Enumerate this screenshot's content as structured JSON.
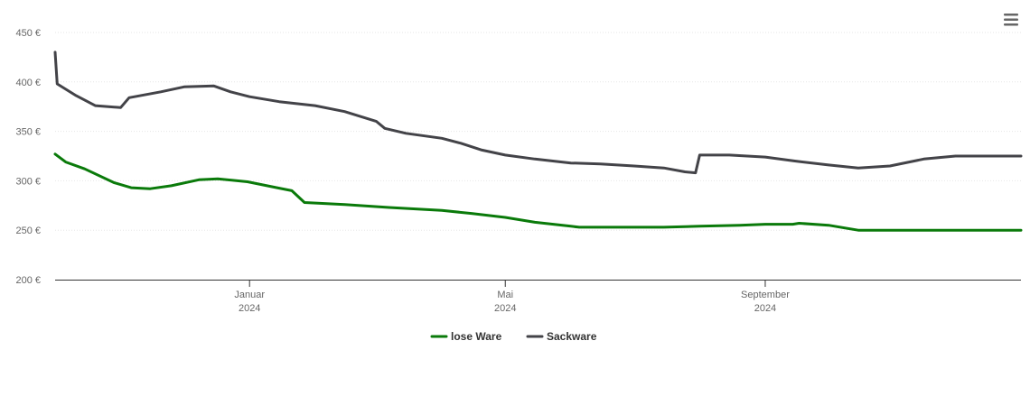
{
  "chart_data": {
    "type": "line",
    "y_unit": "€",
    "ylim": [
      200,
      450
    ],
    "y_ticks": [
      200,
      250,
      300,
      350,
      400,
      450
    ],
    "y_tick_labels": [
      "200 €",
      "250 €",
      "300 €",
      "350 €",
      "400 €",
      "450 €"
    ],
    "xlim": [
      "2023-10-01",
      "2024-12-31"
    ],
    "x_ticks": [
      {
        "date": "2024-01-01",
        "label": "Januar",
        "sublabel": "2024"
      },
      {
        "date": "2024-05-01",
        "label": "Mai",
        "sublabel": "2024"
      },
      {
        "date": "2024-09-01",
        "label": "September",
        "sublabel": "2024"
      }
    ],
    "grid": true,
    "legend_position": "bottom-center",
    "series": [
      {
        "name": "lose Ware",
        "color": "#0a7a0a",
        "points": [
          [
            "2023-10-01",
            327
          ],
          [
            "2023-10-06",
            319
          ],
          [
            "2023-10-15",
            312
          ],
          [
            "2023-10-29",
            298
          ],
          [
            "2023-11-06",
            293
          ],
          [
            "2023-11-15",
            292
          ],
          [
            "2023-11-25",
            295
          ],
          [
            "2023-12-08",
            301
          ],
          [
            "2023-12-17",
            302
          ],
          [
            "2023-12-31",
            299
          ],
          [
            "2024-01-14",
            293
          ],
          [
            "2024-01-21",
            290
          ],
          [
            "2024-01-27",
            278
          ],
          [
            "2024-02-15",
            276
          ],
          [
            "2024-03-07",
            273
          ],
          [
            "2024-04-01",
            270
          ],
          [
            "2024-04-15",
            267
          ],
          [
            "2024-05-01",
            263
          ],
          [
            "2024-05-15",
            258
          ],
          [
            "2024-06-01",
            254
          ],
          [
            "2024-06-05",
            253
          ],
          [
            "2024-06-20",
            253
          ],
          [
            "2024-07-15",
            253
          ],
          [
            "2024-08-01",
            254
          ],
          [
            "2024-08-20",
            255
          ],
          [
            "2024-09-01",
            256
          ],
          [
            "2024-09-14",
            256
          ],
          [
            "2024-09-17",
            257
          ],
          [
            "2024-10-01",
            255
          ],
          [
            "2024-10-15",
            250
          ],
          [
            "2024-10-30",
            250
          ],
          [
            "2024-11-15",
            250
          ],
          [
            "2024-12-01",
            250
          ],
          [
            "2024-12-14",
            250
          ],
          [
            "2024-12-31",
            250
          ]
        ]
      },
      {
        "name": "Sackware",
        "color": "#434348",
        "points": [
          [
            "2023-10-01",
            430
          ],
          [
            "2023-10-02",
            398
          ],
          [
            "2023-10-11",
            386
          ],
          [
            "2023-10-20",
            376
          ],
          [
            "2023-11-01",
            374
          ],
          [
            "2023-11-05",
            384
          ],
          [
            "2023-11-20",
            390
          ],
          [
            "2023-12-01",
            395
          ],
          [
            "2023-12-15",
            396
          ],
          [
            "2023-12-23",
            390
          ],
          [
            "2024-01-01",
            385
          ],
          [
            "2024-01-15",
            380
          ],
          [
            "2024-02-01",
            376
          ],
          [
            "2024-02-15",
            370
          ],
          [
            "2024-03-01",
            360
          ],
          [
            "2024-03-05",
            353
          ],
          [
            "2024-03-15",
            348
          ],
          [
            "2024-04-01",
            343
          ],
          [
            "2024-04-10",
            338
          ],
          [
            "2024-04-20",
            331
          ],
          [
            "2024-05-01",
            326
          ],
          [
            "2024-05-15",
            322
          ],
          [
            "2024-06-01",
            318
          ],
          [
            "2024-06-15",
            317
          ],
          [
            "2024-07-01",
            315
          ],
          [
            "2024-07-15",
            313
          ],
          [
            "2024-07-25",
            309
          ],
          [
            "2024-07-30",
            308
          ],
          [
            "2024-08-01",
            326
          ],
          [
            "2024-08-15",
            326
          ],
          [
            "2024-09-01",
            324
          ],
          [
            "2024-09-15",
            320
          ],
          [
            "2024-10-01",
            316
          ],
          [
            "2024-10-15",
            313
          ],
          [
            "2024-10-30",
            315
          ],
          [
            "2024-11-15",
            322
          ],
          [
            "2024-11-30",
            325
          ],
          [
            "2024-12-15",
            325
          ],
          [
            "2024-12-31",
            325
          ]
        ]
      }
    ]
  },
  "toolbar": {
    "menu_icon": "hamburger-menu-icon"
  }
}
